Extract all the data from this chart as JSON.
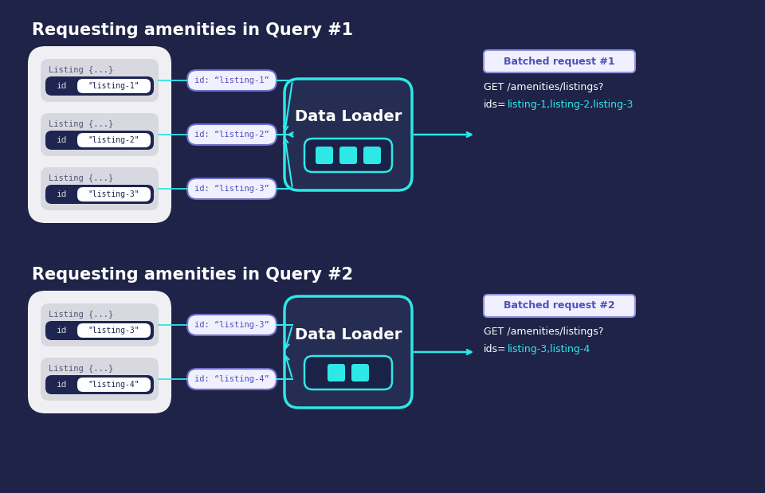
{
  "bg_color": "#1e2347",
  "cyan": "#2ee8e8",
  "white": "#ffffff",
  "light_gray": "#d4d4dc",
  "dark_navy": "#1e2347",
  "card_navy": "#252d52",
  "listing_outer_bg": "#f0f0f4",
  "listing_card_bg": "#d8d8e0",
  "id_bar_color": "#1e2550",
  "id_pill_bg": "#ffffff",
  "id_pill_text": "#1e2550",
  "id_tag_bg": "#f0f0ff",
  "id_tag_border": "#7070cc",
  "id_tag_text": "#5050bb",
  "batched_bg": "#f0f0ff",
  "batched_border": "#9090dd",
  "batched_text": "#5050bb",
  "get_text_color": "#ffffff",
  "ids_text_color": "#2ee8e8",
  "dl_inner_box_bg": "#1a2248",
  "dl_inner_box_border": "#2ee8e8",
  "title1": "Requesting amenities in Query #1",
  "title2": "Requesting amenities in Query #2",
  "query1_listings": [
    "listing-1",
    "listing-2",
    "listing-3"
  ],
  "query2_listings": [
    "listing-3",
    "listing-4"
  ],
  "query1_ids": [
    "listing-1",
    "listing-2",
    "listing-3"
  ],
  "query2_ids": [
    "listing-3",
    "listing-4"
  ],
  "batched_label1": "Batched request #1",
  "batched_label2": "Batched request #2",
  "get_text1": "GET /amenities/listings?",
  "ids_text1": "ids=listing-1,listing-2,listing-3",
  "get_text2": "GET /amenities/listings?",
  "ids_text2": "ids=listing-3,listing-4",
  "title_fontsize": 15,
  "dl_label_fontsize": 14
}
